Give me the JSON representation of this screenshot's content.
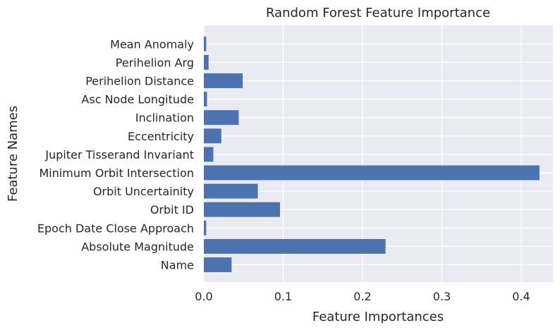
{
  "chart_data": {
    "type": "bar",
    "orientation": "horizontal",
    "title": "Random Forest Feature Importance",
    "xlabel": "Feature Importances",
    "ylabel": "Feature Names",
    "xlim": [
      0,
      0.44
    ],
    "xticks": [
      0.0,
      0.1,
      0.2,
      0.3,
      0.4
    ],
    "xtick_labels": [
      "0.0",
      "0.1",
      "0.2",
      "0.3",
      "0.4"
    ],
    "grid": true,
    "style": "seaborn-darkgrid",
    "colors": {
      "bar": "#4c72b0",
      "background": "#eaeaf2",
      "grid": "#ffffff"
    },
    "categories": [
      "Name",
      "Absolute Magnitude",
      "Epoch Date Close Approach",
      "Orbit ID",
      "Orbit Uncertainity",
      "Minimum Orbit Intersection",
      "Jupiter Tisserand Invariant",
      "Eccentricity",
      "Inclination",
      "Asc Node Longitude",
      "Perihelion Distance",
      "Perihelion Arg",
      "Mean Anomaly"
    ],
    "values": [
      0.035,
      0.229,
      0.003,
      0.096,
      0.068,
      0.423,
      0.012,
      0.022,
      0.044,
      0.004,
      0.049,
      0.006,
      0.003
    ]
  }
}
